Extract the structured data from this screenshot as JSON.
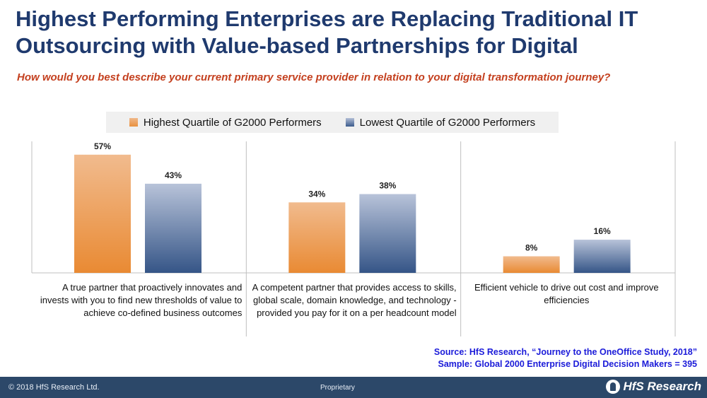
{
  "title": "Highest Performing Enterprises are Replacing Traditional IT Outsourcing with Value-based Partnerships for Digital",
  "subtitle": "How would you best describe your current primary service provider in relation to your digital transformation journey?",
  "chart_data": {
    "type": "bar",
    "categories": [
      "A true partner that proactively innovates and invests with you to find new thresholds of value to achieve co-defined business outcomes",
      "A competent partner that provides access to skills, global scale, domain knowledge, and technology - provided you pay for it on a per headcount model",
      "Efficient vehicle to drive out cost and improve efficiencies"
    ],
    "series": [
      {
        "name": "Highest Quartile of G2000 Performers",
        "values": [
          57,
          34,
          8
        ],
        "labels": [
          "57%",
          "34%",
          "8%"
        ],
        "color": "#e9913f"
      },
      {
        "name": "Lowest Quartile of G2000 Performers",
        "values": [
          43,
          38,
          16
        ],
        "labels": [
          "43%",
          "38%",
          "16%"
        ],
        "color": "#3b5b8c"
      }
    ],
    "ylim": [
      0,
      60
    ],
    "legend_position": "top",
    "grid": false
  },
  "source": {
    "line1": "Source: HfS Research, “Journey to the OneOffice Study, 2018”",
    "line2": "Sample: Global 2000 Enterprise Digital Decision Makers = 395"
  },
  "footer": {
    "copyright": "© 2018 HfS Research Ltd.",
    "proprietary": "Proprietary",
    "logo_text": "HfS Research"
  }
}
